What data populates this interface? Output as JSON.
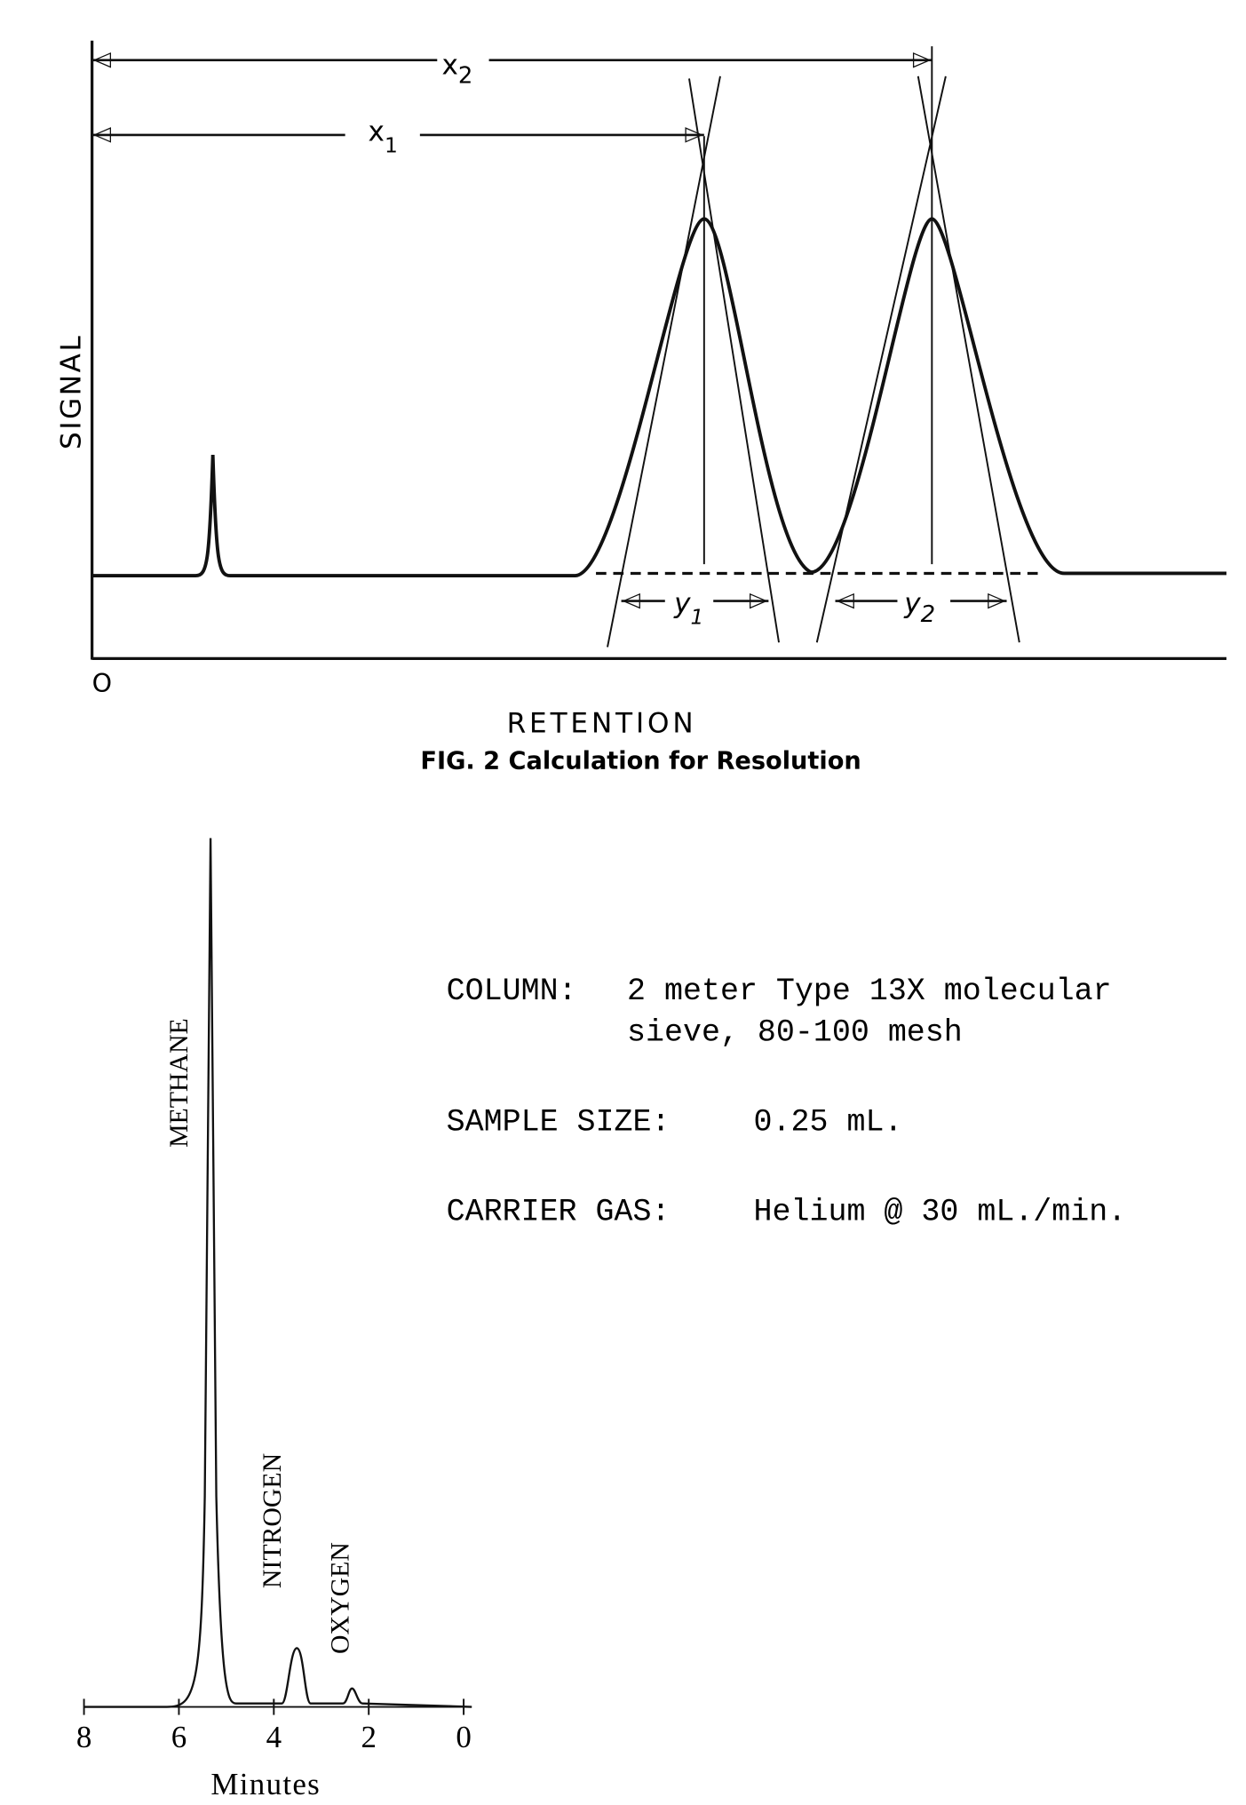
{
  "figure_2": {
    "y_axis_label": "SIGNAL",
    "x_axis_label": "RETENTION",
    "origin_label": "O",
    "x2": {
      "main": "x",
      "sub": "2"
    },
    "x1": {
      "main": "x",
      "sub": "1"
    },
    "y1": {
      "main": "y",
      "sub": "1"
    },
    "y2": {
      "main": "y",
      "sub": "2"
    },
    "caption": "FIG. 2 Calculation for Resolution"
  },
  "figure_3": {
    "peaks": [
      "METHANE",
      "NITROGEN",
      "OXYGEN"
    ],
    "x_ticks": [
      "8",
      "6",
      "4",
      "2",
      "0"
    ],
    "x_label": "Minutes",
    "conditions": [
      {
        "label": "COLUMN:",
        "lines": [
          "2 meter Type 13X molecular",
          "sieve, 80-100 mesh"
        ]
      },
      {
        "label": "SAMPLE SIZE:",
        "lines": [
          "0.25 mL."
        ]
      },
      {
        "label": "CARRIER GAS:",
        "lines": [
          "Helium @ 30 mL./min."
        ]
      }
    ]
  }
}
